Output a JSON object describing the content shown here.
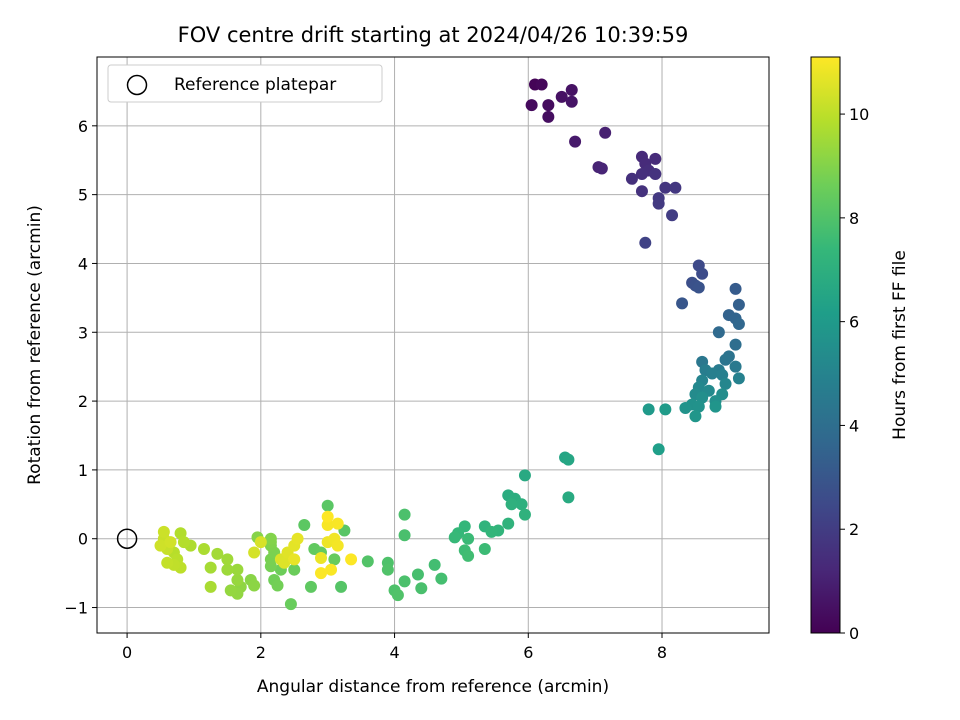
{
  "chart_data": {
    "type": "scatter",
    "title": "FOV centre drift starting at 2024/04/26 10:39:59",
    "xlabel": "Angular distance from reference (arcmin)",
    "ylabel": "Rotation from reference (arcmin)",
    "xlim": [
      -0.45,
      9.6
    ],
    "ylim": [
      -1.37,
      7.0
    ],
    "xticks": [
      0,
      2,
      4,
      6,
      8
    ],
    "yticks": [
      -1,
      0,
      1,
      2,
      3,
      4,
      5,
      6
    ],
    "grid": true,
    "legend": {
      "placement": "upper-left",
      "entries": [
        "Reference platepar"
      ]
    },
    "reference_point": {
      "x": 0,
      "y": 0
    },
    "colorbar": {
      "label": "Hours from first FF file",
      "colormap": "viridis",
      "range": [
        0,
        11.1
      ],
      "ticks": [
        0,
        2,
        4,
        6,
        8,
        10
      ]
    },
    "colors": {
      "viridis": [
        "#440154",
        "#482878",
        "#3e4989",
        "#31688e",
        "#26828e",
        "#1f9e89",
        "#35b779",
        "#6ece58",
        "#b5de2b",
        "#fde725"
      ]
    },
    "points": [
      {
        "x": 6.1,
        "y": 6.6,
        "t": 0.1
      },
      {
        "x": 6.2,
        "y": 6.6,
        "t": 0.2
      },
      {
        "x": 6.05,
        "y": 6.3,
        "t": 0.3
      },
      {
        "x": 6.3,
        "y": 6.3,
        "t": 0.35
      },
      {
        "x": 6.3,
        "y": 6.13,
        "t": 0.4
      },
      {
        "x": 6.5,
        "y": 6.42,
        "t": 0.5
      },
      {
        "x": 6.65,
        "y": 6.52,
        "t": 0.55
      },
      {
        "x": 6.65,
        "y": 6.35,
        "t": 0.6
      },
      {
        "x": 6.7,
        "y": 5.77,
        "t": 0.8
      },
      {
        "x": 7.15,
        "y": 5.9,
        "t": 1.0
      },
      {
        "x": 7.05,
        "y": 5.4,
        "t": 1.1
      },
      {
        "x": 7.1,
        "y": 5.38,
        "t": 1.15
      },
      {
        "x": 7.7,
        "y": 5.55,
        "t": 1.3
      },
      {
        "x": 7.75,
        "y": 5.45,
        "t": 1.35
      },
      {
        "x": 7.9,
        "y": 5.52,
        "t": 1.4
      },
      {
        "x": 7.8,
        "y": 5.35,
        "t": 1.45
      },
      {
        "x": 7.7,
        "y": 5.3,
        "t": 1.5
      },
      {
        "x": 7.55,
        "y": 5.23,
        "t": 1.55
      },
      {
        "x": 7.7,
        "y": 5.05,
        "t": 1.6
      },
      {
        "x": 7.9,
        "y": 5.3,
        "t": 1.65
      },
      {
        "x": 8.05,
        "y": 5.1,
        "t": 1.75
      },
      {
        "x": 8.2,
        "y": 5.1,
        "t": 1.8
      },
      {
        "x": 7.95,
        "y": 4.95,
        "t": 1.85
      },
      {
        "x": 7.95,
        "y": 4.87,
        "t": 1.9
      },
      {
        "x": 8.15,
        "y": 4.7,
        "t": 2.0
      },
      {
        "x": 7.75,
        "y": 4.3,
        "t": 2.2
      },
      {
        "x": 8.55,
        "y": 3.97,
        "t": 2.5
      },
      {
        "x": 8.6,
        "y": 3.85,
        "t": 2.6
      },
      {
        "x": 8.45,
        "y": 3.72,
        "t": 2.7
      },
      {
        "x": 8.5,
        "y": 3.68,
        "t": 2.8
      },
      {
        "x": 8.55,
        "y": 3.65,
        "t": 2.85
      },
      {
        "x": 8.3,
        "y": 3.42,
        "t": 3.0
      },
      {
        "x": 9.1,
        "y": 3.63,
        "t": 3.2
      },
      {
        "x": 9.15,
        "y": 3.4,
        "t": 3.4
      },
      {
        "x": 9.0,
        "y": 3.25,
        "t": 3.5
      },
      {
        "x": 9.1,
        "y": 3.2,
        "t": 3.6
      },
      {
        "x": 9.15,
        "y": 3.12,
        "t": 3.7
      },
      {
        "x": 8.85,
        "y": 3.0,
        "t": 3.8
      },
      {
        "x": 9.1,
        "y": 2.82,
        "t": 4.0
      },
      {
        "x": 9.0,
        "y": 2.65,
        "t": 4.2
      },
      {
        "x": 8.95,
        "y": 2.6,
        "t": 4.3
      },
      {
        "x": 8.6,
        "y": 2.57,
        "t": 4.4
      },
      {
        "x": 9.1,
        "y": 2.5,
        "t": 4.5
      },
      {
        "x": 8.85,
        "y": 2.45,
        "t": 4.6
      },
      {
        "x": 8.65,
        "y": 2.45,
        "t": 4.7
      },
      {
        "x": 8.75,
        "y": 2.4,
        "t": 4.8
      },
      {
        "x": 8.9,
        "y": 2.38,
        "t": 4.85
      },
      {
        "x": 9.15,
        "y": 2.33,
        "t": 4.9
      },
      {
        "x": 8.6,
        "y": 2.3,
        "t": 5.0
      },
      {
        "x": 8.95,
        "y": 2.25,
        "t": 5.1
      },
      {
        "x": 8.55,
        "y": 2.2,
        "t": 5.2
      },
      {
        "x": 8.7,
        "y": 2.15,
        "t": 5.3
      },
      {
        "x": 8.5,
        "y": 2.1,
        "t": 5.35
      },
      {
        "x": 8.9,
        "y": 2.1,
        "t": 5.4
      },
      {
        "x": 8.6,
        "y": 2.05,
        "t": 5.5
      },
      {
        "x": 8.8,
        "y": 2.0,
        "t": 5.55
      },
      {
        "x": 8.45,
        "y": 1.95,
        "t": 5.6
      },
      {
        "x": 8.55,
        "y": 1.92,
        "t": 5.65
      },
      {
        "x": 8.35,
        "y": 1.9,
        "t": 5.7
      },
      {
        "x": 8.8,
        "y": 1.92,
        "t": 5.75
      },
      {
        "x": 8.5,
        "y": 1.78,
        "t": 5.8
      },
      {
        "x": 7.8,
        "y": 1.88,
        "t": 6.0
      },
      {
        "x": 8.05,
        "y": 1.88,
        "t": 6.05
      },
      {
        "x": 7.95,
        "y": 1.3,
        "t": 6.2
      },
      {
        "x": 6.55,
        "y": 1.18,
        "t": 6.5
      },
      {
        "x": 6.6,
        "y": 1.15,
        "t": 6.55
      },
      {
        "x": 5.95,
        "y": 0.92,
        "t": 6.7
      },
      {
        "x": 6.6,
        "y": 0.6,
        "t": 6.75
      },
      {
        "x": 5.7,
        "y": 0.63,
        "t": 6.85
      },
      {
        "x": 5.8,
        "y": 0.58,
        "t": 6.9
      },
      {
        "x": 5.9,
        "y": 0.5,
        "t": 7.0
      },
      {
        "x": 5.75,
        "y": 0.5,
        "t": 7.05
      },
      {
        "x": 5.95,
        "y": 0.35,
        "t": 7.1
      },
      {
        "x": 5.7,
        "y": 0.22,
        "t": 7.15
      },
      {
        "x": 5.35,
        "y": 0.18,
        "t": 7.2
      },
      {
        "x": 5.55,
        "y": 0.12,
        "t": 7.25
      },
      {
        "x": 5.45,
        "y": 0.1,
        "t": 7.3
      },
      {
        "x": 5.05,
        "y": 0.18,
        "t": 7.35
      },
      {
        "x": 4.95,
        "y": 0.08,
        "t": 7.4
      },
      {
        "x": 4.9,
        "y": 0.02,
        "t": 7.45
      },
      {
        "x": 5.1,
        "y": 0.0,
        "t": 7.5
      },
      {
        "x": 5.35,
        "y": -0.15,
        "t": 7.55
      },
      {
        "x": 5.05,
        "y": -0.17,
        "t": 7.6
      },
      {
        "x": 5.1,
        "y": -0.25,
        "t": 7.65
      },
      {
        "x": 4.6,
        "y": -0.38,
        "t": 7.7
      },
      {
        "x": 4.7,
        "y": -0.58,
        "t": 7.75
      },
      {
        "x": 4.35,
        "y": -0.52,
        "t": 7.8
      },
      {
        "x": 4.4,
        "y": -0.72,
        "t": 7.85
      },
      {
        "x": 4.15,
        "y": -0.62,
        "t": 7.9
      },
      {
        "x": 4.0,
        "y": -0.75,
        "t": 7.95
      },
      {
        "x": 4.05,
        "y": -0.82,
        "t": 8.0
      },
      {
        "x": 4.15,
        "y": 0.35,
        "t": 7.9
      },
      {
        "x": 4.15,
        "y": 0.05,
        "t": 7.85
      },
      {
        "x": 3.9,
        "y": -0.35,
        "t": 7.95
      },
      {
        "x": 3.9,
        "y": -0.45,
        "t": 8.0
      },
      {
        "x": 3.6,
        "y": -0.33,
        "t": 8.05
      },
      {
        "x": 3.2,
        "y": -0.7,
        "t": 8.1
      },
      {
        "x": 3.25,
        "y": 0.12,
        "t": 8.15
      },
      {
        "x": 3.0,
        "y": 0.48,
        "t": 8.2
      },
      {
        "x": 2.65,
        "y": 0.2,
        "t": 8.25
      },
      {
        "x": 2.75,
        "y": -0.7,
        "t": 8.3
      },
      {
        "x": 2.8,
        "y": -0.15,
        "t": 8.35
      },
      {
        "x": 2.9,
        "y": -0.2,
        "t": 8.4
      },
      {
        "x": 3.1,
        "y": -0.3,
        "t": 8.45
      },
      {
        "x": 2.45,
        "y": -0.95,
        "t": 8.5
      },
      {
        "x": 2.5,
        "y": -0.45,
        "t": 8.55
      },
      {
        "x": 2.3,
        "y": -0.45,
        "t": 8.6
      },
      {
        "x": 2.2,
        "y": -0.6,
        "t": 8.65
      },
      {
        "x": 2.25,
        "y": -0.68,
        "t": 8.7
      },
      {
        "x": 2.15,
        "y": -0.4,
        "t": 8.75
      },
      {
        "x": 2.15,
        "y": -0.3,
        "t": 8.8
      },
      {
        "x": 2.2,
        "y": -0.2,
        "t": 8.85
      },
      {
        "x": 2.15,
        "y": -0.1,
        "t": 8.9
      },
      {
        "x": 2.15,
        "y": -0.05,
        "t": 8.95
      },
      {
        "x": 2.15,
        "y": 0.0,
        "t": 9.0
      },
      {
        "x": 1.95,
        "y": 0.02,
        "t": 9.05
      },
      {
        "x": 1.85,
        "y": -0.6,
        "t": 9.1
      },
      {
        "x": 1.9,
        "y": -0.68,
        "t": 9.15
      },
      {
        "x": 1.7,
        "y": -0.7,
        "t": 9.2
      },
      {
        "x": 1.65,
        "y": -0.8,
        "t": 9.25
      },
      {
        "x": 1.55,
        "y": -0.75,
        "t": 9.3
      },
      {
        "x": 1.65,
        "y": -0.6,
        "t": 9.35
      },
      {
        "x": 1.65,
        "y": -0.45,
        "t": 9.4
      },
      {
        "x": 1.5,
        "y": -0.45,
        "t": 9.45
      },
      {
        "x": 1.5,
        "y": -0.3,
        "t": 9.5
      },
      {
        "x": 1.35,
        "y": -0.22,
        "t": 9.55
      },
      {
        "x": 1.25,
        "y": -0.42,
        "t": 9.6
      },
      {
        "x": 1.25,
        "y": -0.7,
        "t": 9.65
      },
      {
        "x": 1.15,
        "y": -0.15,
        "t": 9.7
      },
      {
        "x": 0.95,
        "y": -0.1,
        "t": 9.75
      },
      {
        "x": 0.8,
        "y": 0.08,
        "t": 9.8
      },
      {
        "x": 0.85,
        "y": -0.05,
        "t": 9.85
      },
      {
        "x": 0.7,
        "y": -0.2,
        "t": 9.9
      },
      {
        "x": 0.75,
        "y": -0.3,
        "t": 9.95
      },
      {
        "x": 0.8,
        "y": -0.42,
        "t": 10.0
      },
      {
        "x": 0.7,
        "y": -0.38,
        "t": 10.05
      },
      {
        "x": 0.6,
        "y": -0.35,
        "t": 10.1
      },
      {
        "x": 0.6,
        "y": -0.15,
        "t": 10.15
      },
      {
        "x": 0.55,
        "y": 0.0,
        "t": 10.2
      },
      {
        "x": 0.55,
        "y": 0.1,
        "t": 10.25
      },
      {
        "x": 0.5,
        "y": -0.1,
        "t": 10.3
      },
      {
        "x": 0.65,
        "y": -0.05,
        "t": 10.35
      },
      {
        "x": 1.9,
        "y": -0.2,
        "t": 10.4
      },
      {
        "x": 2.0,
        "y": -0.05,
        "t": 10.45
      },
      {
        "x": 2.3,
        "y": -0.3,
        "t": 10.5
      },
      {
        "x": 2.35,
        "y": -0.35,
        "t": 10.55
      },
      {
        "x": 2.4,
        "y": -0.2,
        "t": 10.6
      },
      {
        "x": 2.5,
        "y": -0.1,
        "t": 10.65
      },
      {
        "x": 2.55,
        "y": 0.0,
        "t": 10.7
      },
      {
        "x": 2.5,
        "y": -0.3,
        "t": 10.75
      },
      {
        "x": 2.9,
        "y": -0.28,
        "t": 10.8
      },
      {
        "x": 3.0,
        "y": -0.05,
        "t": 10.85
      },
      {
        "x": 3.1,
        "y": 0.0,
        "t": 10.9
      },
      {
        "x": 3.15,
        "y": -0.1,
        "t": 10.95
      },
      {
        "x": 3.0,
        "y": 0.2,
        "t": 11.0
      },
      {
        "x": 3.15,
        "y": 0.22,
        "t": 11.02
      },
      {
        "x": 3.05,
        "y": -0.45,
        "t": 11.04
      },
      {
        "x": 2.9,
        "y": -0.5,
        "t": 11.06
      },
      {
        "x": 3.35,
        "y": -0.3,
        "t": 11.08
      },
      {
        "x": 3.0,
        "y": 0.32,
        "t": 11.1
      }
    ]
  }
}
